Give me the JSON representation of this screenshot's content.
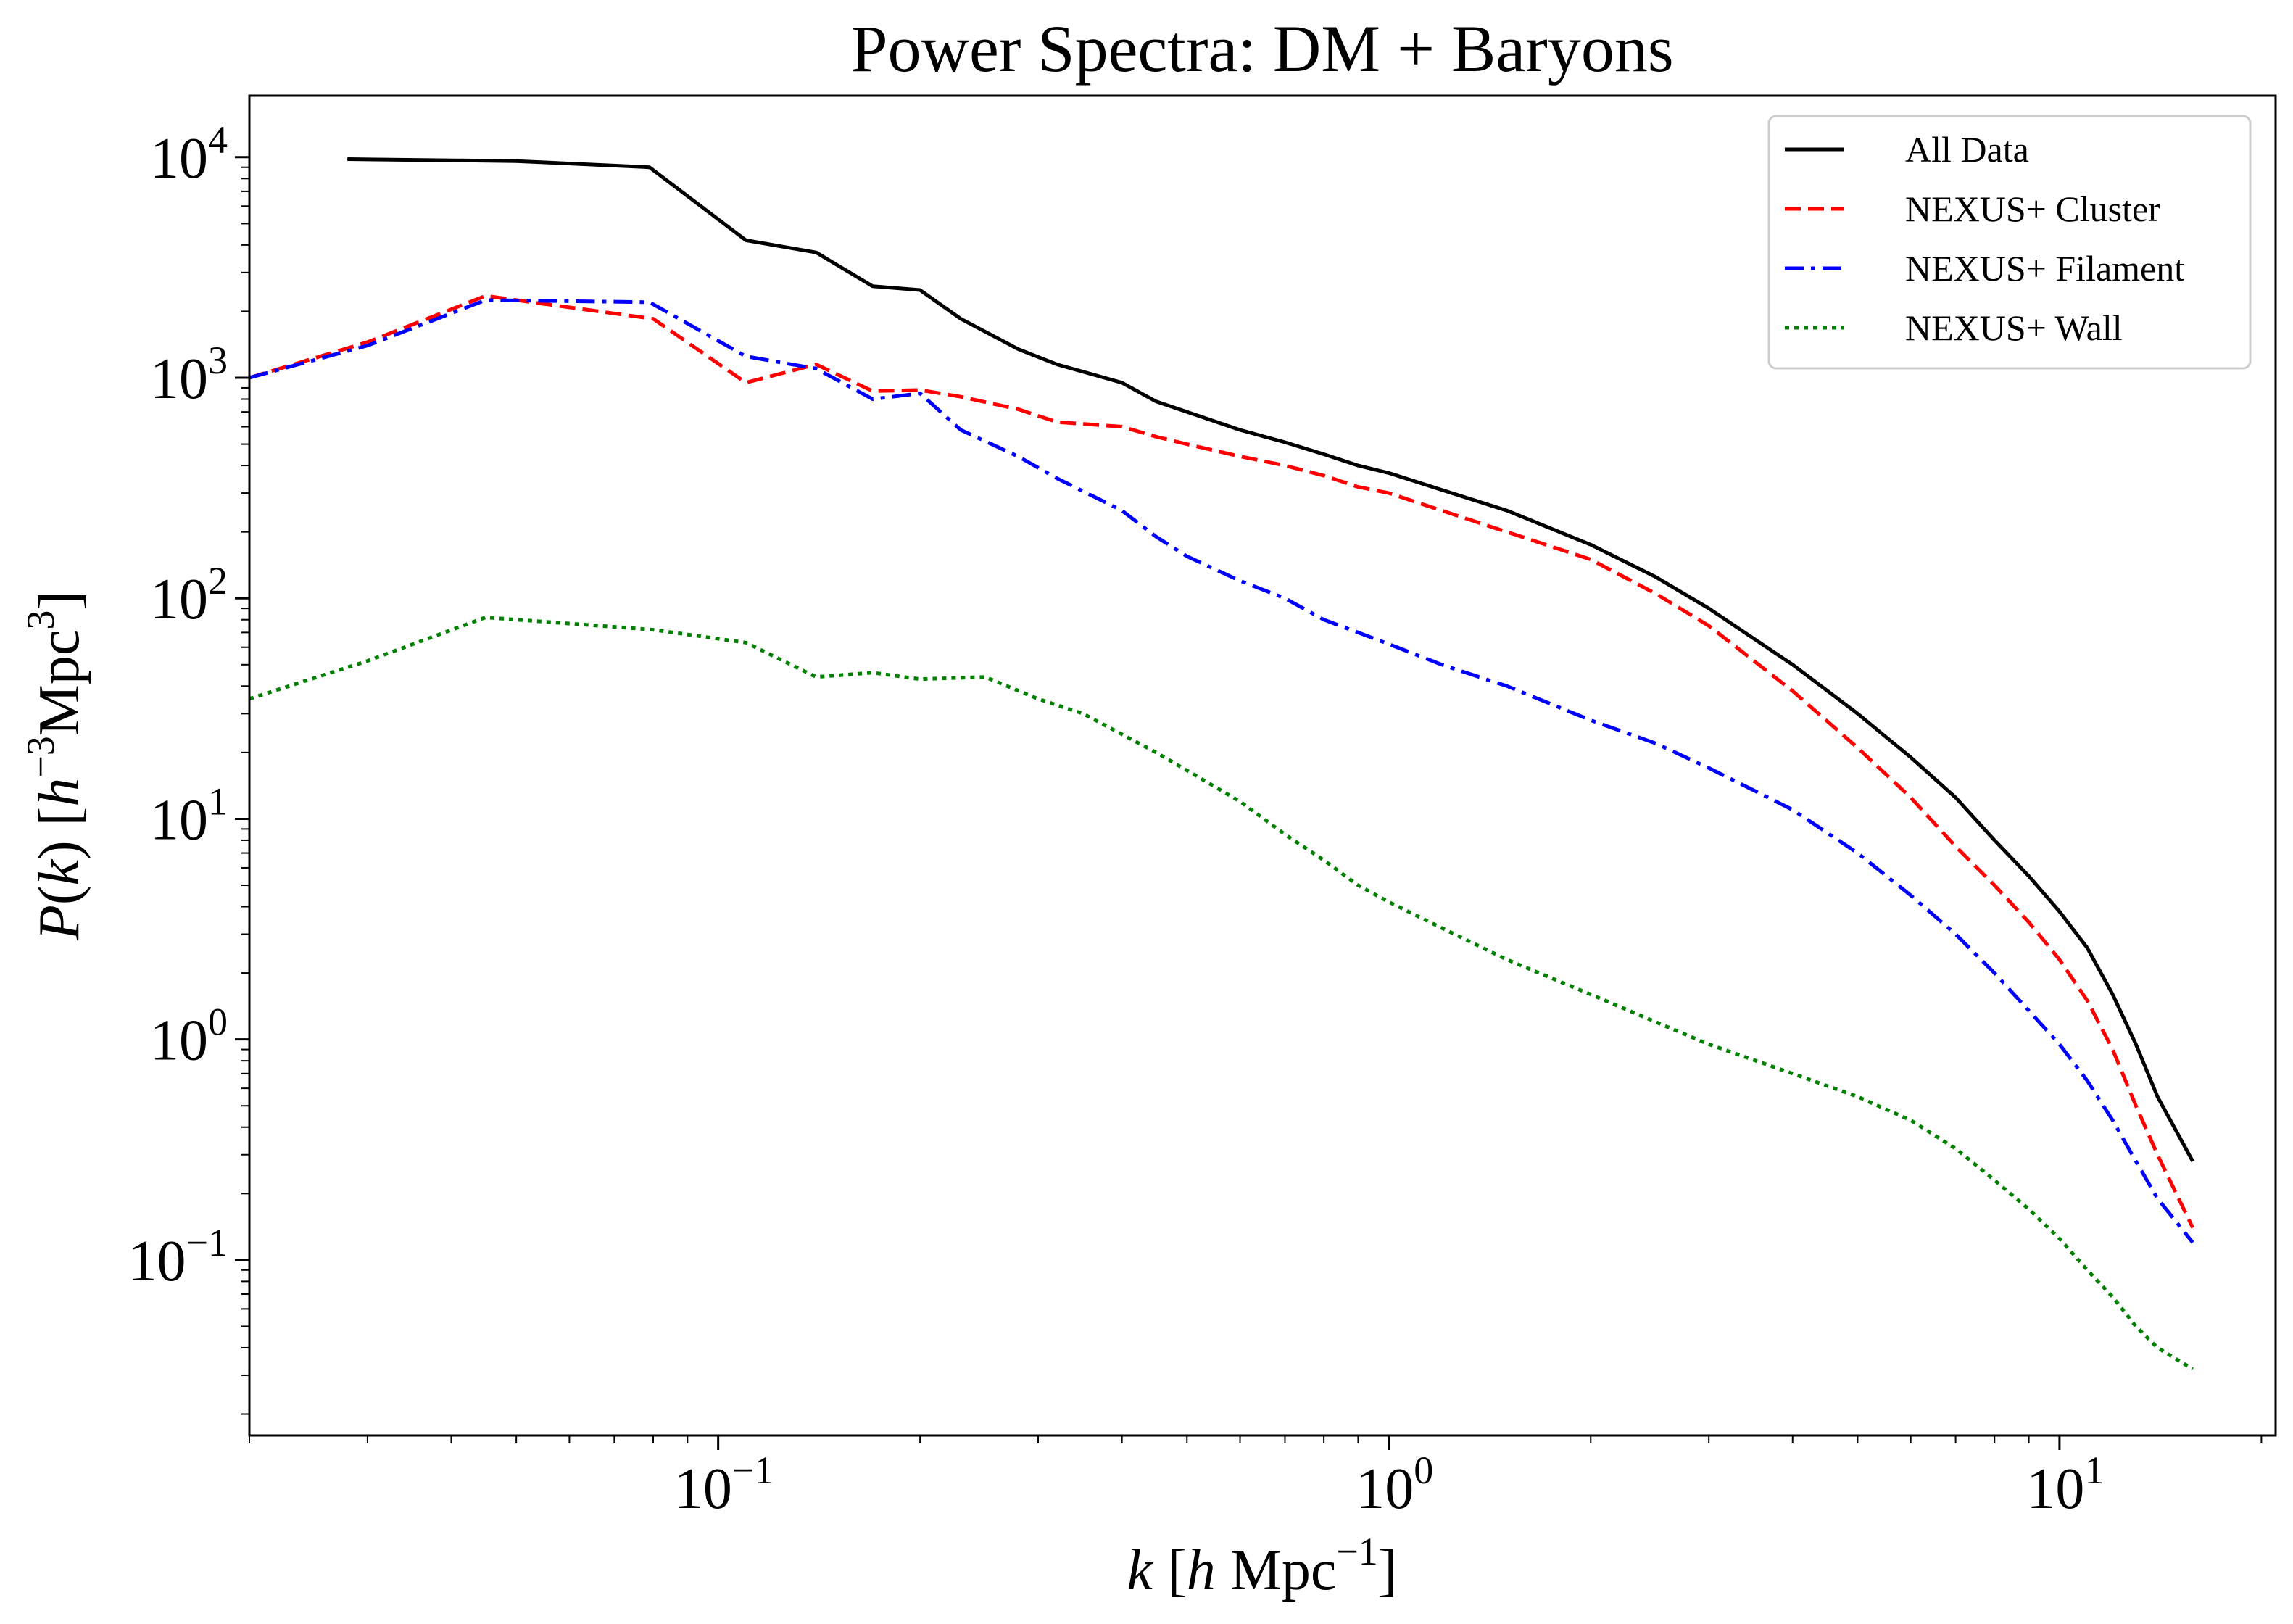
{
  "chart_data": {
    "type": "line",
    "title": "Power Spectra: DM + Baryons",
    "xlabel": "k [h Mpc⁻¹]",
    "ylabel": "P(k) [h⁻³Mpc³]",
    "xlabel_parts": {
      "var": "k",
      "bracket_open": " [",
      "h": "h",
      "unit": " Mpc",
      "exp": "−1",
      "bracket_close": "]"
    },
    "ylabel_parts": {
      "func": "P",
      "paren_open": "(",
      "var": "k",
      "paren_close": ")",
      "bracket_open": " [",
      "h": "h",
      "exp1": "−3",
      "unit": "Mpc",
      "exp2": "3",
      "bracket_close": "]"
    },
    "x_scale": "log",
    "y_scale": "log",
    "xlim": [
      0.02,
      21
    ],
    "ylim": [
      0.016,
      19000
    ],
    "x_tick_labels": [
      {
        "value": 0.1,
        "base": "10",
        "exp": "−1"
      },
      {
        "value": 1,
        "base": "10",
        "exp": "0"
      },
      {
        "value": 10,
        "base": "10",
        "exp": "1"
      }
    ],
    "y_tick_labels": [
      {
        "value": 0.1,
        "base": "10",
        "exp": "−1"
      },
      {
        "value": 1,
        "base": "10",
        "exp": "0"
      },
      {
        "value": 10,
        "base": "10",
        "exp": "1"
      },
      {
        "value": 100,
        "base": "10",
        "exp": "2"
      },
      {
        "value": 1000,
        "base": "10",
        "exp": "3"
      },
      {
        "value": 10000,
        "base": "10",
        "exp": "4"
      }
    ],
    "grid": false,
    "legend_position": "top-right",
    "series": [
      {
        "name": "All Data",
        "color": "#000000",
        "style": "solid",
        "points": [
          [
            0.028,
            9800
          ],
          [
            0.05,
            9600
          ],
          [
            0.079,
            9000
          ],
          [
            0.11,
            4200
          ],
          [
            0.14,
            3700
          ],
          [
            0.17,
            2600
          ],
          [
            0.2,
            2500
          ],
          [
            0.23,
            1850
          ],
          [
            0.28,
            1350
          ],
          [
            0.32,
            1150
          ],
          [
            0.4,
            950
          ],
          [
            0.45,
            780
          ],
          [
            0.5,
            700
          ],
          [
            0.6,
            580
          ],
          [
            0.7,
            510
          ],
          [
            0.8,
            450
          ],
          [
            0.9,
            400
          ],
          [
            1.0,
            370
          ],
          [
            1.2,
            310
          ],
          [
            1.5,
            250
          ],
          [
            2.0,
            175
          ],
          [
            2.5,
            125
          ],
          [
            3.0,
            90
          ],
          [
            4.0,
            50
          ],
          [
            5.0,
            30
          ],
          [
            6.0,
            19
          ],
          [
            7.0,
            12.5
          ],
          [
            8.0,
            8
          ],
          [
            9.0,
            5.5
          ],
          [
            10.0,
            3.8
          ],
          [
            11.0,
            2.6
          ],
          [
            12.0,
            1.6
          ],
          [
            13.0,
            0.95
          ],
          [
            14.0,
            0.55
          ],
          [
            15.8,
            0.28
          ]
        ]
      },
      {
        "name": "NEXUS+ Cluster",
        "color": "#ff0000",
        "style": "dashed",
        "points": [
          [
            0.02,
            1000
          ],
          [
            0.03,
            1450
          ],
          [
            0.045,
            2350
          ],
          [
            0.05,
            2250
          ],
          [
            0.08,
            1850
          ],
          [
            0.11,
            950
          ],
          [
            0.14,
            1150
          ],
          [
            0.17,
            870
          ],
          [
            0.2,
            880
          ],
          [
            0.23,
            820
          ],
          [
            0.28,
            720
          ],
          [
            0.32,
            630
          ],
          [
            0.4,
            600
          ],
          [
            0.45,
            540
          ],
          [
            0.5,
            500
          ],
          [
            0.6,
            440
          ],
          [
            0.7,
            400
          ],
          [
            0.8,
            360
          ],
          [
            0.9,
            320
          ],
          [
            1.0,
            300
          ],
          [
            1.2,
            250
          ],
          [
            1.5,
            200
          ],
          [
            2.0,
            150
          ],
          [
            2.5,
            105
          ],
          [
            3.0,
            75
          ],
          [
            4.0,
            38
          ],
          [
            5.0,
            21
          ],
          [
            6.0,
            12.5
          ],
          [
            7.0,
            7.5
          ],
          [
            8.0,
            5
          ],
          [
            9.0,
            3.4
          ],
          [
            10.0,
            2.3
          ],
          [
            11.0,
            1.5
          ],
          [
            12.0,
            0.9
          ],
          [
            13.0,
            0.5
          ],
          [
            14.0,
            0.3
          ],
          [
            15.8,
            0.14
          ]
        ]
      },
      {
        "name": "NEXUS+ Filament",
        "color": "#0000ff",
        "style": "dashdot",
        "points": [
          [
            0.02,
            1000
          ],
          [
            0.03,
            1400
          ],
          [
            0.045,
            2250
          ],
          [
            0.079,
            2200
          ],
          [
            0.11,
            1250
          ],
          [
            0.14,
            1100
          ],
          [
            0.17,
            800
          ],
          [
            0.2,
            850
          ],
          [
            0.23,
            580
          ],
          [
            0.28,
            440
          ],
          [
            0.32,
            350
          ],
          [
            0.4,
            250
          ],
          [
            0.45,
            190
          ],
          [
            0.5,
            155
          ],
          [
            0.6,
            120
          ],
          [
            0.7,
            100
          ],
          [
            0.8,
            80
          ],
          [
            0.9,
            70
          ],
          [
            1.0,
            62
          ],
          [
            1.2,
            50
          ],
          [
            1.5,
            40
          ],
          [
            2.0,
            28
          ],
          [
            2.5,
            22
          ],
          [
            3.0,
            17
          ],
          [
            4.0,
            11
          ],
          [
            5.0,
            7
          ],
          [
            6.0,
            4.5
          ],
          [
            7.0,
            3
          ],
          [
            8.0,
            2
          ],
          [
            9.0,
            1.35
          ],
          [
            10.0,
            0.95
          ],
          [
            11.0,
            0.65
          ],
          [
            12.0,
            0.43
          ],
          [
            13.0,
            0.28
          ],
          [
            14.0,
            0.19
          ],
          [
            15.8,
            0.12
          ]
        ]
      },
      {
        "name": "NEXUS+ Wall",
        "color": "#008000",
        "style": "dotted",
        "points": [
          [
            0.02,
            35
          ],
          [
            0.03,
            52
          ],
          [
            0.045,
            82
          ],
          [
            0.08,
            72
          ],
          [
            0.11,
            63
          ],
          [
            0.14,
            44
          ],
          [
            0.17,
            46
          ],
          [
            0.2,
            43
          ],
          [
            0.25,
            44
          ],
          [
            0.3,
            35
          ],
          [
            0.35,
            30
          ],
          [
            0.45,
            20
          ],
          [
            0.6,
            12
          ],
          [
            0.7,
            8.5
          ],
          [
            0.8,
            6.5
          ],
          [
            0.9,
            5
          ],
          [
            1.0,
            4.2
          ],
          [
            1.2,
            3.2
          ],
          [
            1.5,
            2.3
          ],
          [
            2.0,
            1.6
          ],
          [
            2.5,
            1.2
          ],
          [
            3.0,
            0.95
          ],
          [
            4.0,
            0.7
          ],
          [
            5.0,
            0.55
          ],
          [
            6.0,
            0.43
          ],
          [
            7.0,
            0.32
          ],
          [
            8.0,
            0.23
          ],
          [
            9.0,
            0.17
          ],
          [
            10.0,
            0.125
          ],
          [
            11.0,
            0.09
          ],
          [
            12.0,
            0.068
          ],
          [
            13.0,
            0.05
          ],
          [
            14.0,
            0.04
          ],
          [
            15.8,
            0.032
          ]
        ]
      }
    ]
  }
}
